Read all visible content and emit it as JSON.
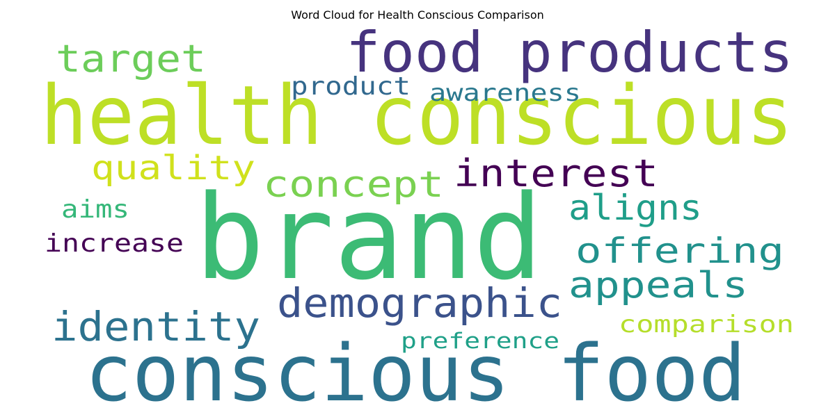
{
  "chart_data": {
    "type": "wordcloud",
    "title": "Word Cloud for Health Conscious Comparison",
    "words": [
      {
        "text": "health conscious",
        "weight": 1.0,
        "color": "#bddf26"
      },
      {
        "text": "brand",
        "weight": 1.0,
        "color": "#3cbb75"
      },
      {
        "text": "conscious food",
        "weight": 0.95,
        "color": "#2c728e"
      },
      {
        "text": "food products",
        "weight": 0.7,
        "color": "#46337e"
      },
      {
        "text": "demographic",
        "weight": 0.45,
        "color": "#3b528b"
      },
      {
        "text": "identity",
        "weight": 0.45,
        "color": "#2c728e"
      },
      {
        "text": "interest",
        "weight": 0.42,
        "color": "#440154"
      },
      {
        "text": "target",
        "weight": 0.42,
        "color": "#6ccd5a"
      },
      {
        "text": "concept",
        "weight": 0.4,
        "color": "#7ad151"
      },
      {
        "text": "appeals",
        "weight": 0.4,
        "color": "#21918c"
      },
      {
        "text": "aligns",
        "weight": 0.38,
        "color": "#1f9e89"
      },
      {
        "text": "offering",
        "weight": 0.38,
        "color": "#21918c"
      },
      {
        "text": "quality",
        "weight": 0.36,
        "color": "#d0e11c"
      },
      {
        "text": "increase",
        "weight": 0.28,
        "color": "#440154"
      },
      {
        "text": "product",
        "weight": 0.28,
        "color": "#31688e"
      },
      {
        "text": "aims",
        "weight": 0.28,
        "color": "#35b779"
      },
      {
        "text": "awareness",
        "weight": 0.27,
        "color": "#2a788e"
      },
      {
        "text": "comparison",
        "weight": 0.27,
        "color": "#b5de2b"
      },
      {
        "text": "preference",
        "weight": 0.24,
        "color": "#1fa088"
      }
    ]
  }
}
